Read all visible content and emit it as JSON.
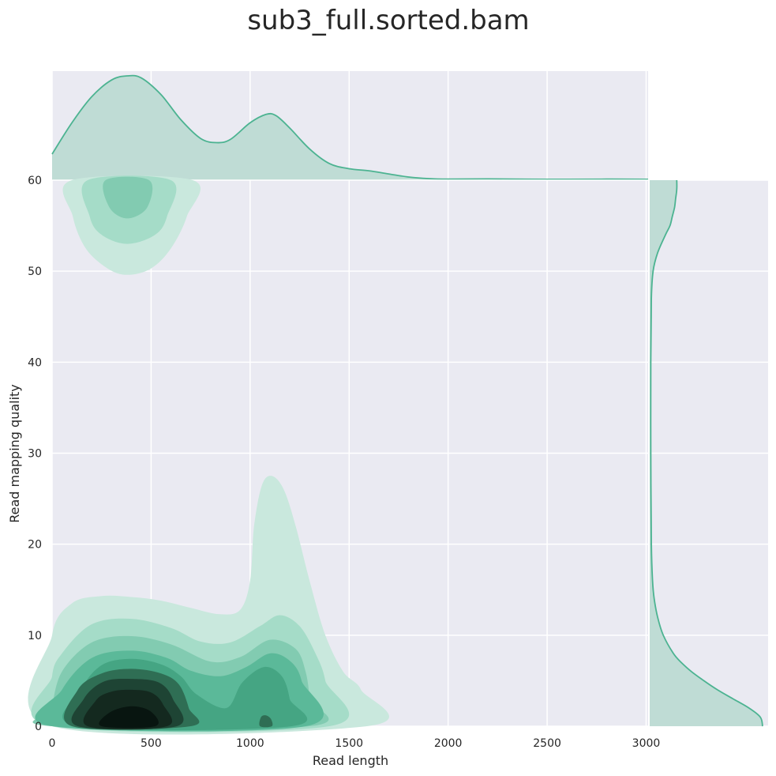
{
  "chart_data": {
    "type": "jointplot-kde",
    "title": "sub3_full.sorted.bam",
    "xlabel": "Read length",
    "ylabel": "Read mapping quality",
    "xlim": [
      0,
      3010
    ],
    "ylim": [
      0,
      60
    ],
    "xticks": [
      0,
      500,
      1000,
      1500,
      2000,
      2500,
      3000
    ],
    "yticks": [
      0,
      10,
      20,
      30,
      40,
      50,
      60
    ],
    "grid": true,
    "colors": {
      "background": "#eaeaf2",
      "grid": "#ffffff",
      "line": "#4cb391",
      "marginal_fill": "#bfdcd5",
      "levels": [
        "#c9e8dd",
        "#a5dcc8",
        "#82cbb1",
        "#5bb999",
        "#45a583",
        "#2f6e54",
        "#1e4434",
        "#14291f",
        "#081510"
      ]
    },
    "marginal_x": {
      "x": [
        0,
        100,
        200,
        300,
        380,
        450,
        550,
        650,
        750,
        830,
        900,
        1000,
        1080,
        1130,
        1200,
        1300,
        1400,
        1500,
        1600,
        1700,
        1800,
        1900,
        2000,
        2200,
        2500,
        2800,
        3010
      ],
      "density": [
        0.25,
        0.55,
        0.8,
        0.96,
        1.0,
        0.98,
        0.82,
        0.58,
        0.4,
        0.36,
        0.39,
        0.55,
        0.63,
        0.62,
        0.5,
        0.3,
        0.16,
        0.11,
        0.09,
        0.06,
        0.03,
        0.015,
        0.01,
        0.012,
        0.008,
        0.01,
        0.008
      ]
    },
    "marginal_y": {
      "y": [
        0,
        1,
        2,
        3,
        4,
        5,
        6,
        7,
        8,
        10,
        12,
        14,
        16,
        20,
        30,
        40,
        47,
        50,
        52,
        54,
        55,
        56,
        57,
        58,
        59,
        60
      ],
      "density": [
        1.0,
        0.98,
        0.88,
        0.74,
        0.6,
        0.48,
        0.37,
        0.28,
        0.21,
        0.12,
        0.07,
        0.04,
        0.025,
        0.015,
        0.01,
        0.01,
        0.015,
        0.03,
        0.07,
        0.14,
        0.18,
        0.2,
        0.22,
        0.23,
        0.24,
        0.24
      ]
    },
    "contours": [
      {
        "level": 1,
        "points": [
          [
            0,
            0
          ],
          [
            0,
            10
          ],
          [
            100,
            13.5
          ],
          [
            250,
            14.3
          ],
          [
            400,
            14.2
          ],
          [
            550,
            13.8
          ],
          [
            700,
            13.0
          ],
          [
            850,
            12.3
          ],
          [
            950,
            12.8
          ],
          [
            1000,
            16
          ],
          [
            1020,
            22
          ],
          [
            1060,
            26.5
          ],
          [
            1110,
            27.5
          ],
          [
            1170,
            26
          ],
          [
            1230,
            22
          ],
          [
            1300,
            16
          ],
          [
            1380,
            10
          ],
          [
            1470,
            6
          ],
          [
            1560,
            4
          ],
          [
            1590,
            0
          ]
        ]
      },
      {
        "level": 1,
        "points": [
          [
            100,
            60
          ],
          [
            105,
            56
          ],
          [
            170,
            52.5
          ],
          [
            280,
            50.3
          ],
          [
            380,
            49.6
          ],
          [
            500,
            50.3
          ],
          [
            600,
            52.5
          ],
          [
            680,
            56
          ],
          [
            710,
            60
          ]
        ]
      },
      {
        "level": 2,
        "points": [
          [
            0,
            0
          ],
          [
            0,
            5.5
          ],
          [
            50,
            8
          ],
          [
            200,
            11.2
          ],
          [
            400,
            11.8
          ],
          [
            600,
            10.8
          ],
          [
            750,
            9.3
          ],
          [
            900,
            9.2
          ],
          [
            1050,
            11
          ],
          [
            1150,
            12.2
          ],
          [
            1250,
            11
          ],
          [
            1330,
            8
          ],
          [
            1380,
            5
          ],
          [
            1400,
            0
          ]
        ]
      },
      {
        "level": 2,
        "points": [
          [
            180,
            60
          ],
          [
            190,
            56
          ],
          [
            250,
            54
          ],
          [
            380,
            53
          ],
          [
            520,
            54
          ],
          [
            580,
            56
          ],
          [
            600,
            60
          ]
        ]
      },
      {
        "level": 3,
        "points": [
          [
            0,
            0
          ],
          [
            0,
            2
          ],
          [
            50,
            6
          ],
          [
            200,
            9.2
          ],
          [
            400,
            9.9
          ],
          [
            600,
            9.0
          ],
          [
            800,
            7.1
          ],
          [
            950,
            7.6
          ],
          [
            1100,
            9.5
          ],
          [
            1230,
            8.5
          ],
          [
            1280,
            6
          ],
          [
            1300,
            3
          ],
          [
            1300,
            0
          ]
        ]
      },
      {
        "level": 3,
        "points": [
          [
            270,
            60
          ],
          [
            290,
            57
          ],
          [
            380,
            55.8
          ],
          [
            480,
            57
          ],
          [
            490,
            60
          ]
        ]
      },
      {
        "level": 4,
        "points": [
          [
            0,
            0
          ],
          [
            50,
            4
          ],
          [
            200,
            7.5
          ],
          [
            400,
            8.3
          ],
          [
            580,
            7.5
          ],
          [
            700,
            6.1
          ],
          [
            850,
            5.5
          ],
          [
            980,
            6.5
          ],
          [
            1100,
            8.0
          ],
          [
            1200,
            7.2
          ],
          [
            1260,
            5
          ],
          [
            1280,
            0
          ]
        ]
      },
      {
        "level": 5,
        "points": [
          [
            130,
            0
          ],
          [
            150,
            4
          ],
          [
            250,
            6.7
          ],
          [
            400,
            7.4
          ],
          [
            550,
            6.8
          ],
          [
            650,
            5.5
          ],
          [
            730,
            3.5
          ],
          [
            880,
            2
          ],
          [
            960,
            4.8
          ],
          [
            1070,
            6.5
          ],
          [
            1160,
            5.5
          ],
          [
            1200,
            3
          ],
          [
            1210,
            0
          ]
        ]
      },
      {
        "level": 6,
        "points": [
          [
            100,
            0
          ],
          [
            130,
            4
          ],
          [
            250,
            5.8
          ],
          [
            400,
            6.3
          ],
          [
            550,
            5.8
          ],
          [
            640,
            4.6
          ],
          [
            690,
            2
          ],
          [
            700,
            0
          ]
        ]
      },
      {
        "level": 6,
        "points": [
          [
            1050,
            0
          ],
          [
            1055,
            1
          ],
          [
            1080,
            1.2
          ],
          [
            1105,
            0.8
          ],
          [
            1110,
            0
          ]
        ]
      },
      {
        "level": 7,
        "points": [
          [
            130,
            0
          ],
          [
            160,
            3
          ],
          [
            260,
            4.9
          ],
          [
            400,
            5.2
          ],
          [
            540,
            4.8
          ],
          [
            610,
            3
          ],
          [
            630,
            0
          ]
        ]
      },
      {
        "level": 8,
        "points": [
          [
            180,
            0
          ],
          [
            220,
            2.8
          ],
          [
            300,
            3.8
          ],
          [
            400,
            4.0
          ],
          [
            500,
            3.7
          ],
          [
            560,
            2.4
          ],
          [
            580,
            0
          ]
        ]
      },
      {
        "level": 9,
        "points": [
          [
            250,
            0
          ],
          [
            290,
            1.5
          ],
          [
            400,
            2.2
          ],
          [
            500,
            1.6
          ],
          [
            520,
            0
          ]
        ]
      }
    ]
  }
}
